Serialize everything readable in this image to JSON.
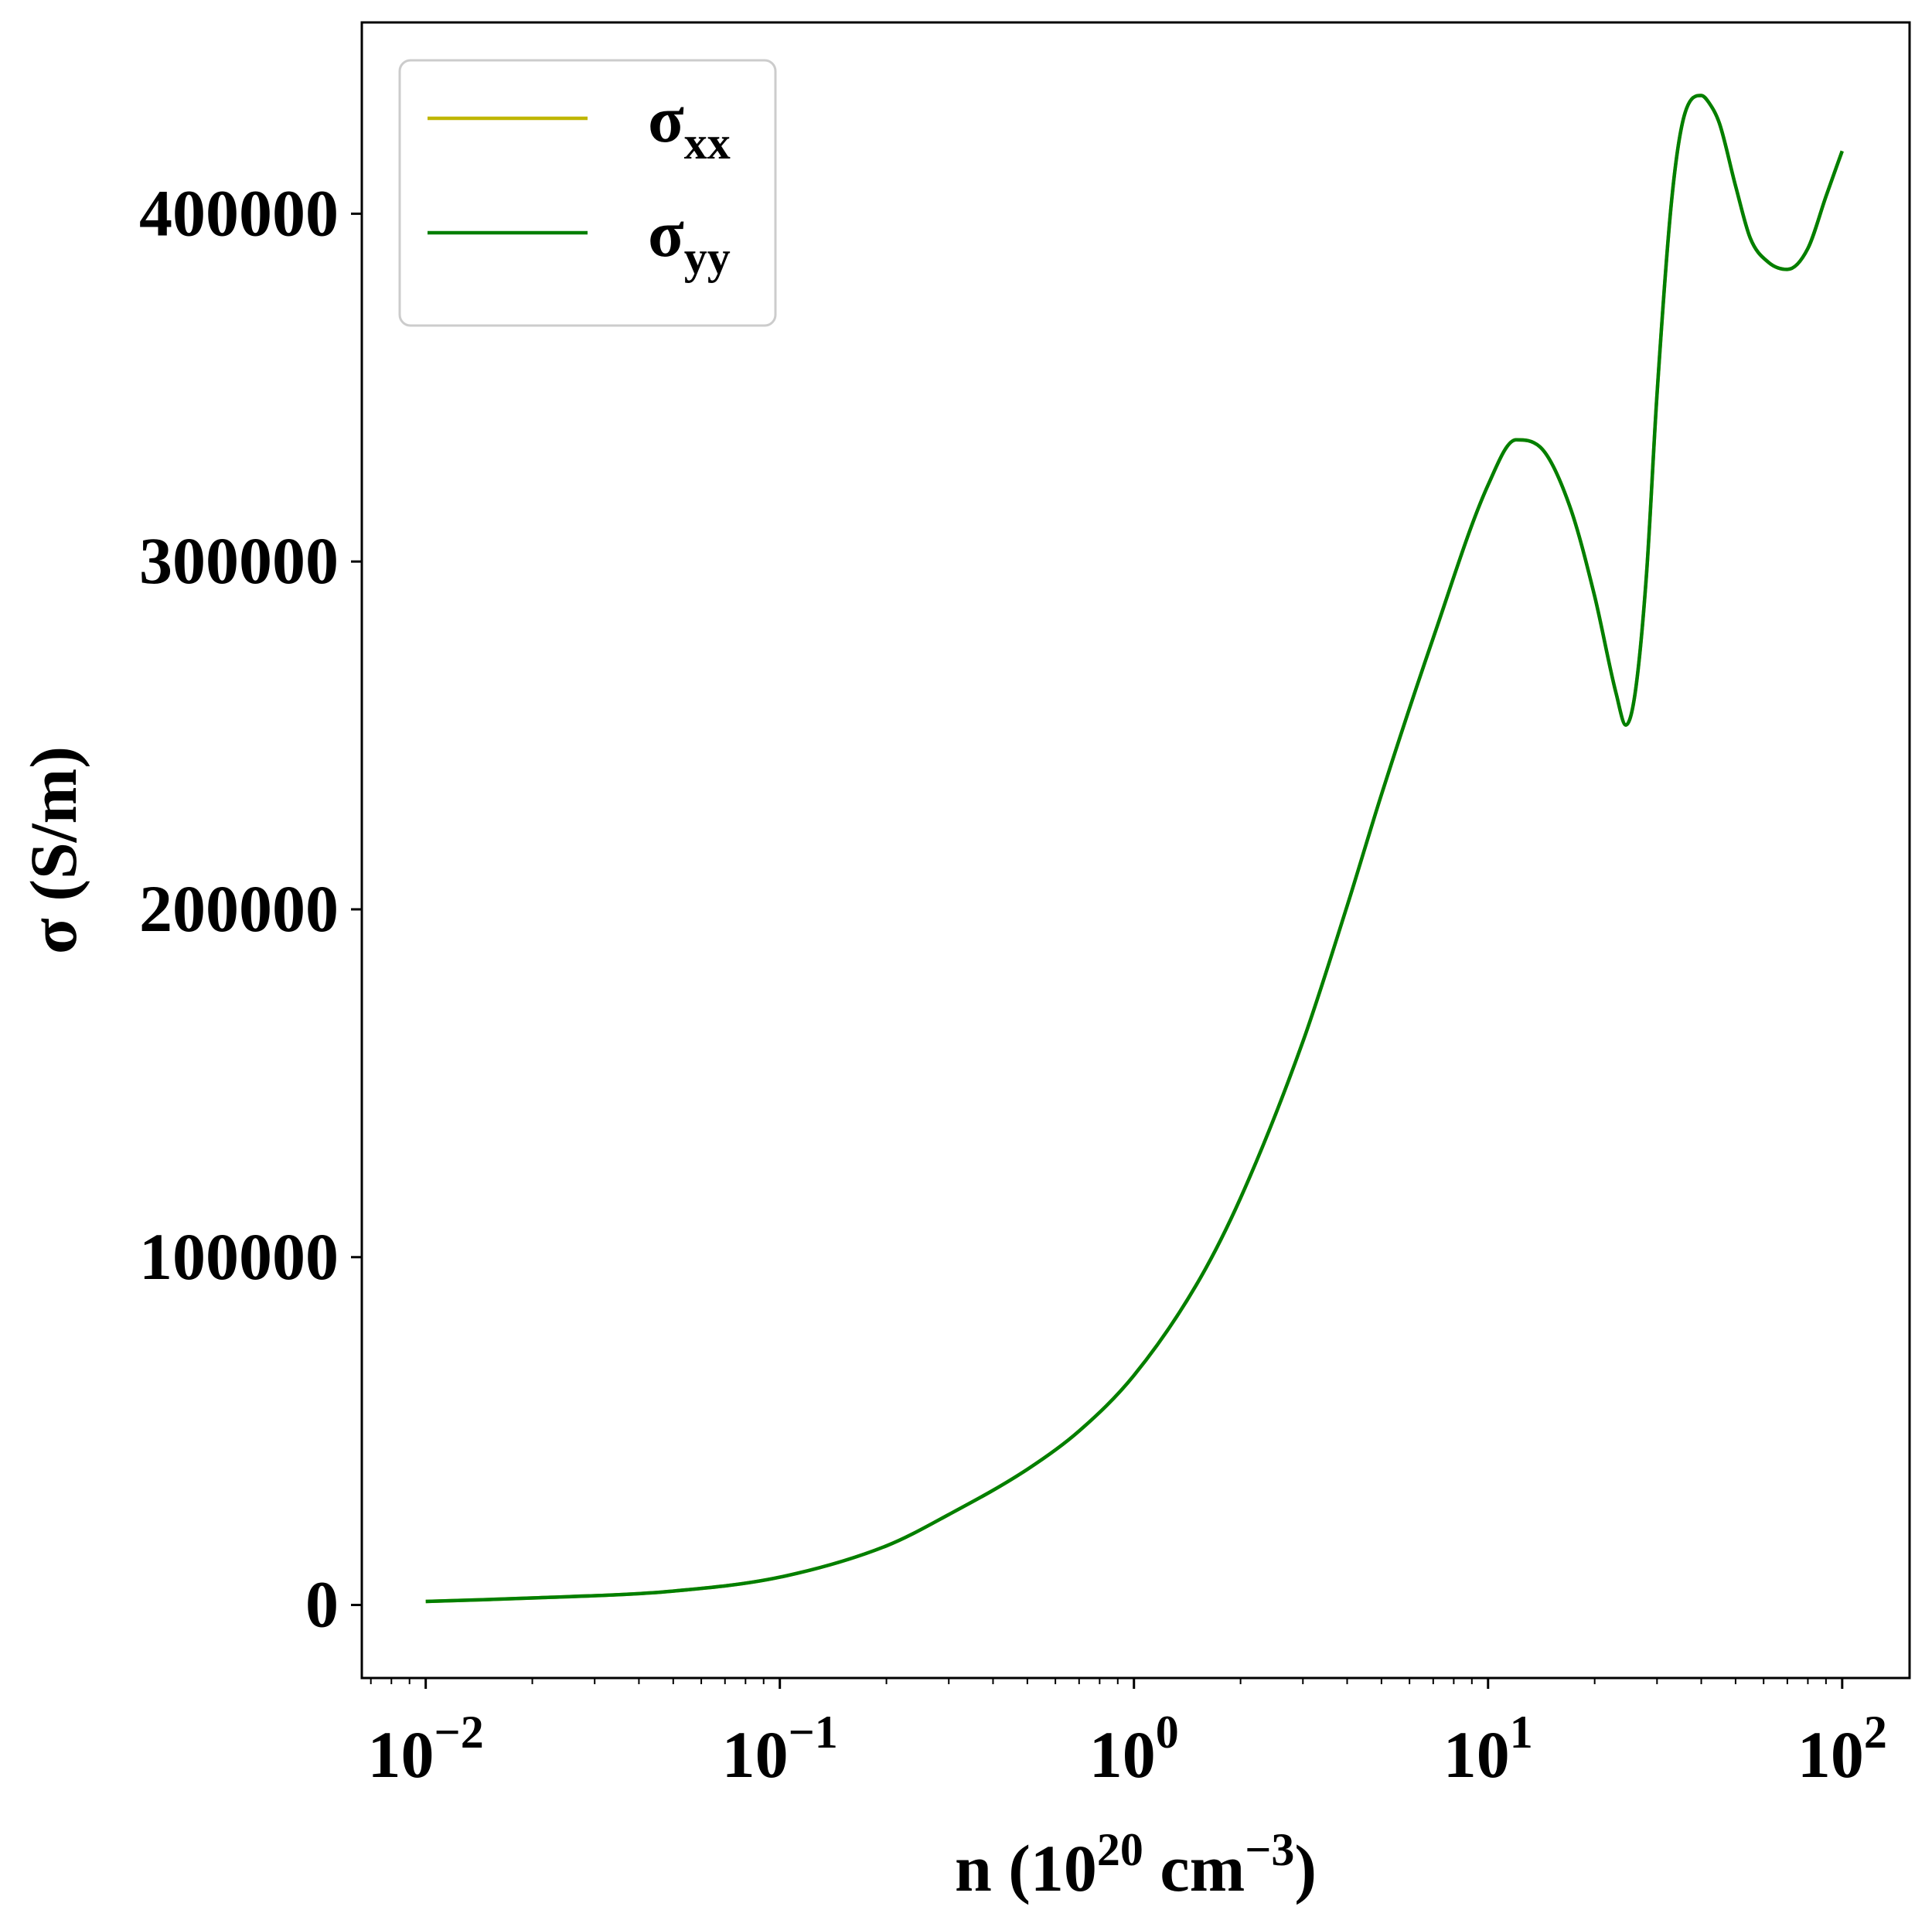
{
  "chart_data": {
    "type": "line",
    "title": "",
    "xlabel": {
      "base": "n (10",
      "exp1": "20",
      "mid": " cm",
      "exp2": "−3",
      "end": ")"
    },
    "ylabel": "σ (S/m)",
    "xscale": "log",
    "xlim": [
      0.0066,
      155
    ],
    "ylim": [
      -21000,
      455000
    ],
    "x_ticks": [
      {
        "value": 0.01,
        "base": "10",
        "exp": "−2"
      },
      {
        "value": 0.1,
        "base": "10",
        "exp": "−1"
      },
      {
        "value": 1,
        "base": "10",
        "exp": "0"
      },
      {
        "value": 10,
        "base": "10",
        "exp": "1"
      },
      {
        "value": 100,
        "base": "10",
        "exp": "2"
      }
    ],
    "y_ticks": [
      {
        "value": 0,
        "label": "0"
      },
      {
        "value": 100000,
        "label": "100000"
      },
      {
        "value": 200000,
        "label": "200000"
      },
      {
        "value": 300000,
        "label": "300000"
      },
      {
        "value": 400000,
        "label": "400000"
      }
    ],
    "grid": false,
    "legend_position": "top-left",
    "series": [
      {
        "name": "σ",
        "subscript": "xx",
        "color": "#bfb600",
        "x": [
          0.01,
          0.02,
          0.05,
          0.1,
          0.2,
          0.3,
          0.5,
          0.7,
          1.0,
          1.5,
          2.0,
          3.0,
          4.0,
          5.0,
          7.0,
          10.0,
          12.0,
          14.0,
          17.0,
          20.0,
          23.0,
          24.5,
          26.0,
          28.0,
          30.0,
          33.0,
          36.0,
          40.0,
          42.0,
          45.0,
          50.0,
          55.0,
          62.0,
          70.0,
          80.0,
          90.0,
          100.0
        ],
        "y": [
          1000,
          2000,
          4000,
          8000,
          17000,
          26000,
          39000,
          50000,
          66000,
          92000,
          117000,
          162000,
          201000,
          233000,
          278000,
          322000,
          335000,
          333000,
          316000,
          290000,
          262000,
          253000,
          262000,
          296000,
          348000,
          404000,
          429000,
          434000,
          432000,
          426000,
          408000,
          393000,
          386000,
          384000,
          390000,
          405000,
          418000
        ]
      },
      {
        "name": "σ",
        "subscript": "yy",
        "color": "#007f00",
        "x": [
          0.01,
          0.02,
          0.05,
          0.1,
          0.2,
          0.3,
          0.5,
          0.7,
          1.0,
          1.5,
          2.0,
          3.0,
          4.0,
          5.0,
          7.0,
          10.0,
          12.0,
          14.0,
          17.0,
          20.0,
          23.0,
          24.5,
          26.0,
          28.0,
          30.0,
          33.0,
          36.0,
          40.0,
          42.0,
          45.0,
          50.0,
          55.0,
          62.0,
          70.0,
          80.0,
          90.0,
          100.0
        ],
        "y": [
          1000,
          2000,
          4000,
          8000,
          17000,
          26000,
          39000,
          50000,
          66000,
          92000,
          117000,
          162000,
          201000,
          233000,
          278000,
          322000,
          335000,
          333000,
          316000,
          290000,
          262000,
          253000,
          262000,
          296000,
          348000,
          404000,
          429000,
          434000,
          432000,
          426000,
          408000,
          393000,
          386000,
          384000,
          390000,
          405000,
          418000
        ]
      }
    ]
  }
}
